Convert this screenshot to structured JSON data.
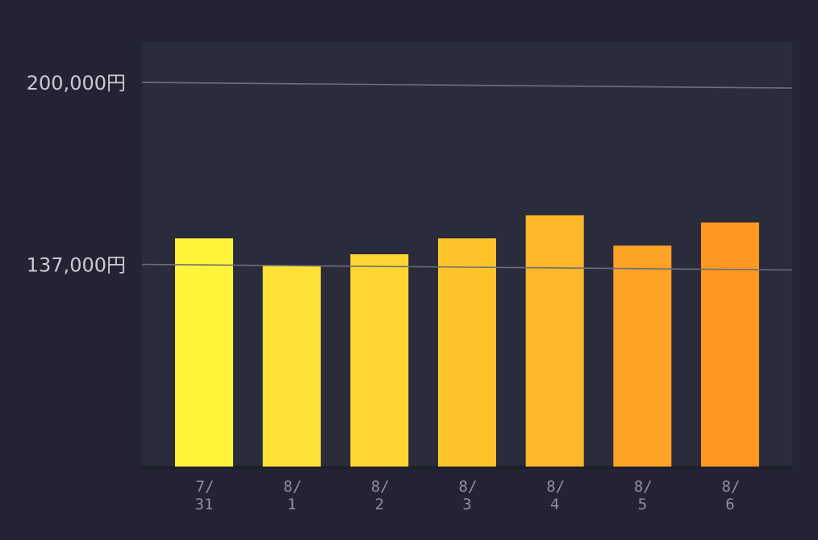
{
  "chart_data": {
    "type": "bar",
    "categories": [
      {
        "line1": "7/",
        "line2": "31"
      },
      {
        "line1": "8/",
        "line2": "1"
      },
      {
        "line1": "8/",
        "line2": "2"
      },
      {
        "line1": "8/",
        "line2": "3"
      },
      {
        "line1": "8/",
        "line2": "4"
      },
      {
        "line1": "8/",
        "line2": "5"
      },
      {
        "line1": "8/",
        "line2": "6"
      }
    ],
    "values": [
      146000,
      136500,
      140500,
      146000,
      154000,
      143500,
      151500
    ],
    "reference_lines": [
      {
        "value": 200000,
        "label": "200,000円"
      },
      {
        "value": 137000,
        "label": "137,000円"
      }
    ],
    "ylim": [
      67000,
      214000
    ],
    "bar_colors": [
      "#fff43a",
      "#ffe235",
      "#ffd630",
      "#ffc42c",
      "#ffb72a",
      "#ffa326",
      "#ff9720"
    ],
    "plot_background": "#2a2b3b",
    "page_background": "#232334",
    "gridline_color": "#6d6d7b",
    "title": "",
    "xlabel": "",
    "ylabel": ""
  }
}
